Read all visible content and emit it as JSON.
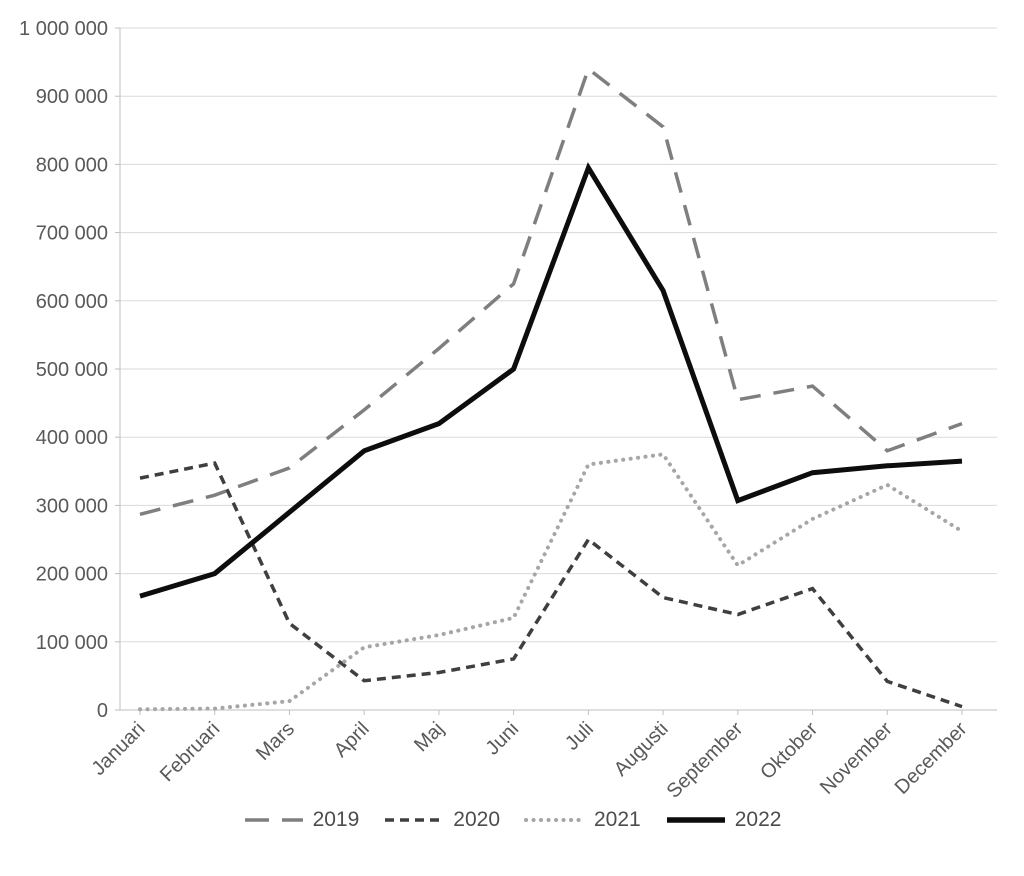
{
  "chart_data": {
    "type": "line",
    "title": "",
    "categories": [
      "Januari",
      "Februari",
      "Mars",
      "April",
      "Maj",
      "Juni",
      "Juli",
      "Augusti",
      "September",
      "Oktober",
      "November",
      "December"
    ],
    "series": [
      {
        "name": "2019",
        "color": "#7f7f7f",
        "dash": "long-dash",
        "values": [
          287000,
          315000,
          355000,
          440000,
          530000,
          625000,
          940000,
          855000,
          455000,
          475000,
          380000,
          420000
        ]
      },
      {
        "name": "2020",
        "color": "#3f3f3f",
        "dash": "dash",
        "values": [
          340000,
          362000,
          127000,
          43000,
          55000,
          75000,
          250000,
          165000,
          140000,
          178000,
          42000,
          5000
        ]
      },
      {
        "name": "2021",
        "color": "#a6a6a6",
        "dash": "dot",
        "values": [
          1000,
          2000,
          13000,
          92000,
          110000,
          135000,
          360000,
          375000,
          212000,
          280000,
          330000,
          262000
        ]
      },
      {
        "name": "2022",
        "color": "#0d0d0d",
        "dash": "solid",
        "values": [
          167000,
          200000,
          290000,
          380000,
          420000,
          500000,
          795000,
          615000,
          307000,
          348000,
          358000,
          365000
        ]
      }
    ],
    "y_axis": {
      "min": 0,
      "max": 1000000,
      "step": 100000,
      "tick_labels": [
        "0",
        "100 000",
        "200 000",
        "300 000",
        "400 000",
        "500 000",
        "600 000",
        "700 000",
        "800 000",
        "900 000",
        "1 000 000"
      ]
    },
    "x_axis": {
      "label_rotation": -45
    },
    "grid": true,
    "legend_position": "bottom",
    "colors": {
      "grid": "#dadada",
      "axis": "#bfbfbf",
      "text": "#595959",
      "background": "#ffffff"
    }
  }
}
